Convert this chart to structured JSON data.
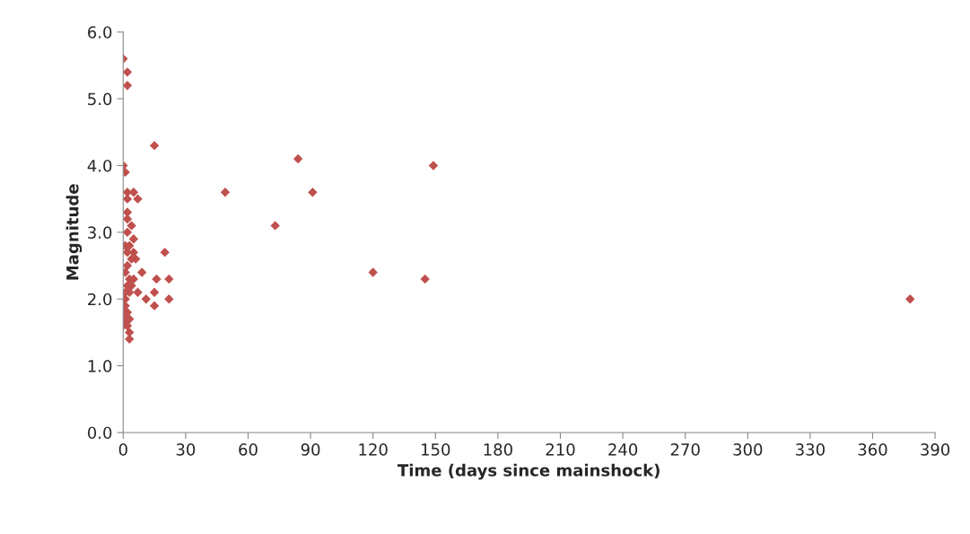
{
  "chart_data": {
    "type": "scatter",
    "xlabel": "Time (days since mainshock)",
    "ylabel": "Magnitude",
    "x": [
      0,
      2,
      2,
      0,
      1,
      15,
      2,
      5,
      7,
      2,
      2,
      2,
      4,
      2,
      5,
      1,
      3,
      5,
      2,
      4,
      6,
      2,
      9,
      1,
      3,
      5,
      16,
      22,
      20,
      2,
      4,
      1,
      3,
      7,
      15,
      11,
      22,
      1,
      15,
      1,
      2,
      0,
      3,
      1,
      2,
      0,
      3,
      3,
      49,
      73,
      84,
      91,
      120,
      145,
      149,
      378
    ],
    "values": [
      5.6,
      5.4,
      5.2,
      4.0,
      3.9,
      4.3,
      3.6,
      3.6,
      3.5,
      3.5,
      3.3,
      3.2,
      3.1,
      3.0,
      2.9,
      2.8,
      2.8,
      2.7,
      2.7,
      2.6,
      2.6,
      2.5,
      2.4,
      2.4,
      2.3,
      2.3,
      2.3,
      2.3,
      2.7,
      2.2,
      2.2,
      2.1,
      2.1,
      2.1,
      2.1,
      2.0,
      2.0,
      2.0,
      1.9,
      1.9,
      1.8,
      1.8,
      1.7,
      1.7,
      1.6,
      1.6,
      1.5,
      1.4,
      3.6,
      3.1,
      4.1,
      3.6,
      2.4,
      2.3,
      4.0,
      2.0
    ],
    "color": "#c0504d",
    "marker": "diamond",
    "xlim": [
      0,
      390
    ],
    "xticks": [
      0,
      30,
      60,
      90,
      120,
      150,
      180,
      210,
      240,
      270,
      300,
      330,
      360,
      390
    ],
    "ylim": [
      0,
      6
    ],
    "yticks": [
      {
        "value": 0,
        "label": "0.0"
      },
      {
        "value": 1,
        "label": "1.0"
      },
      {
        "value": 2,
        "label": "2.0"
      },
      {
        "value": 3,
        "label": "3.0"
      },
      {
        "value": 4,
        "label": "4.0"
      },
      {
        "value": 5,
        "label": "5.0"
      },
      {
        "value": 6,
        "label": "6.0"
      }
    ],
    "grid": false,
    "legend": false
  }
}
